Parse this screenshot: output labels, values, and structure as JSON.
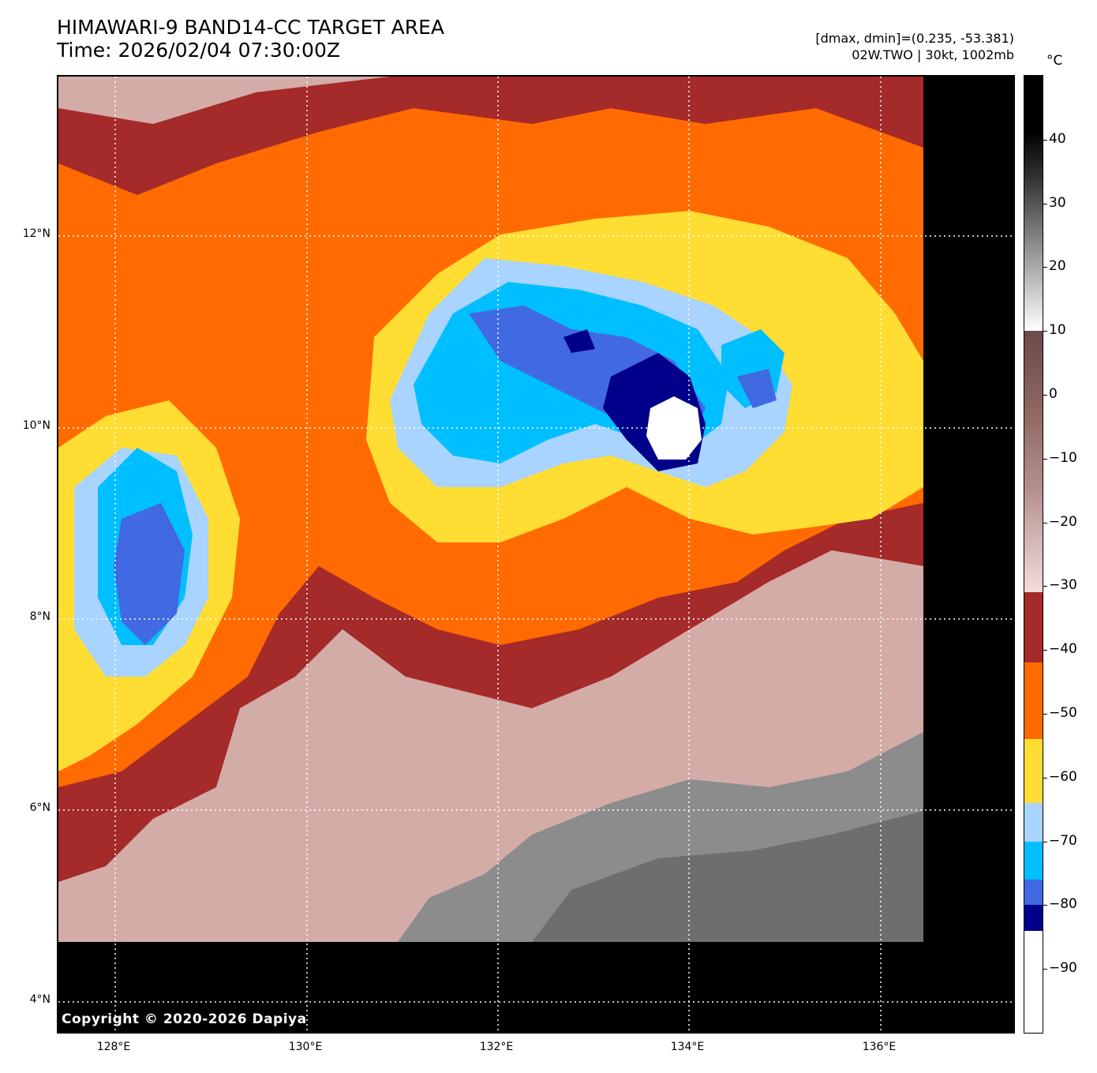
{
  "header": {
    "title_line1": "HIMAWARI-9 BAND14-CC TARGET AREA",
    "title_line2": "Time: 2026/02/04 07:30:00Z",
    "info_line1": "[dmax, dmin]=(0.235, -53.381)",
    "info_line2": "02W.TWO | 30kt, 1002mb"
  },
  "map": {
    "copyright": "Copyright © 2020-2026 Dapiya",
    "lat_labels": [
      "12°N",
      "10°N",
      "8°N",
      "6°N",
      "4°N"
    ],
    "lon_labels": [
      "128°E",
      "130°E",
      "132°E",
      "134°E",
      "136°E"
    ]
  },
  "colorbar": {
    "unit": "°C",
    "tick_labels": [
      "40",
      "30",
      "20",
      "10",
      "0",
      "−10",
      "−20",
      "−30",
      "−40",
      "−50",
      "−60",
      "−70",
      "−80",
      "−90"
    ],
    "range_c": [
      -100,
      50
    ],
    "segments": [
      {
        "from": 50,
        "to": 10,
        "kind": "gray"
      },
      {
        "from": 10,
        "to": -31,
        "kind": "brown-pink"
      },
      {
        "from": -31,
        "to": -42,
        "color": "#a52a2a"
      },
      {
        "from": -42,
        "to": -54,
        "color": "#ff6b00"
      },
      {
        "from": -54,
        "to": -64,
        "color": "#ffdd33"
      },
      {
        "from": -64,
        "to": -70,
        "color": "#a8d4ff"
      },
      {
        "from": -70,
        "to": -76,
        "color": "#00bfff"
      },
      {
        "from": -76,
        "to": -80,
        "color": "#4169e1"
      },
      {
        "from": -80,
        "to": -84,
        "color": "#00008b"
      },
      {
        "from": -84,
        "to": -100,
        "color": "#ffffff"
      }
    ]
  }
}
